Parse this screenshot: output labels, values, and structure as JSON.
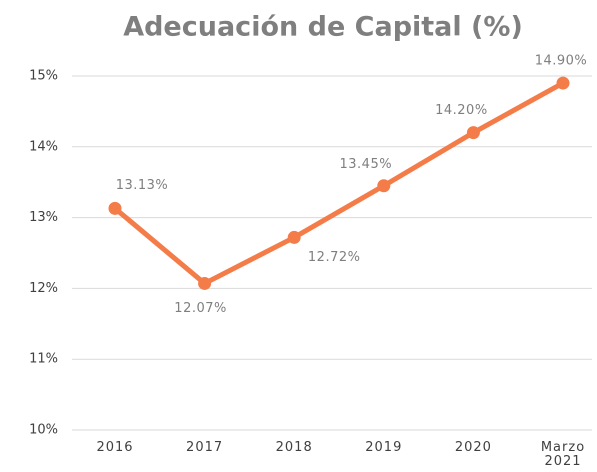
{
  "chart_data": {
    "type": "line",
    "title": "Adecuación de Capital (%)",
    "categories": [
      "2016",
      "2017",
      "2018",
      "2019",
      "2020",
      "Marzo 2021"
    ],
    "values": [
      13.13,
      12.07,
      12.72,
      13.45,
      14.2,
      14.9
    ],
    "value_labels": [
      "13.13%",
      "12.07%",
      "12.72%",
      "13.45%",
      "14.20%",
      "14.90%"
    ],
    "color": "#f47c48",
    "ylim": [
      10,
      15
    ],
    "yticks": [
      {
        "value": 10,
        "label": "10%"
      },
      {
        "value": 11,
        "label": "11%"
      },
      {
        "value": 12,
        "label": "12%"
      },
      {
        "value": 13,
        "label": "13%"
      },
      {
        "value": 14,
        "label": "14%"
      },
      {
        "value": 15,
        "label": "15%"
      }
    ],
    "grid": true
  }
}
